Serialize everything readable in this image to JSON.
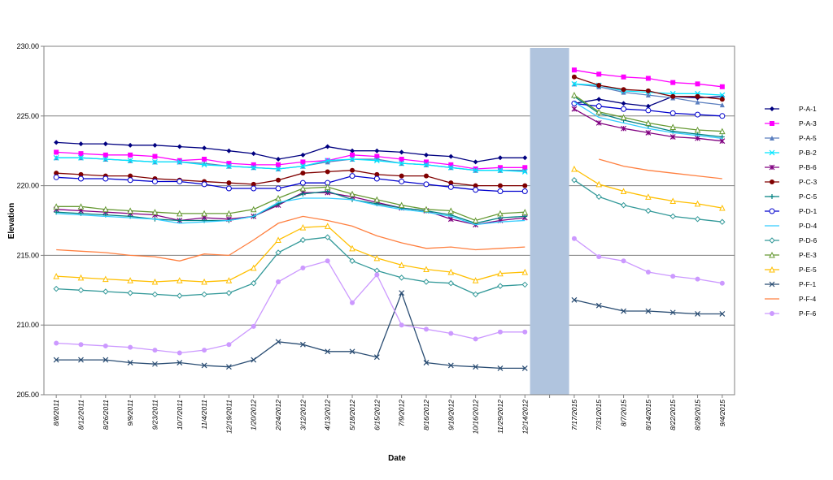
{
  "chart_data": {
    "type": "line",
    "title": "",
    "xlabel": "Date",
    "ylabel": "Elevation",
    "ylim": [
      205,
      230
    ],
    "yticks": [
      "205.00",
      "210.00",
      "215.00",
      "220.00",
      "225.00",
      "230.00"
    ],
    "grid": "horizontal",
    "legend_position": "right",
    "gap_band_color": "#b0c4de",
    "x": [
      "8/8/2011",
      "8/12/2011",
      "8/26/2011",
      "9/9/2011",
      "9/23/2011",
      "10/7/2011",
      "11/4/2011",
      "12/19/2011",
      "1/20/2012",
      "2/24/2012",
      "3/12/2012",
      "4/13/2012",
      "5/18/2012",
      "6/15/2012",
      "7/9/2012",
      "8/16/2012",
      "9/18/2012",
      "10/16/2012",
      "11/29/2012",
      "12/14/2012",
      "",
      "7/17/2015",
      "7/31/2015",
      "8/7/2015",
      "8/14/2015",
      "8/22/2015",
      "8/28/2015",
      "9/4/2015"
    ],
    "gap_index": 20,
    "series": [
      {
        "name": "P-A-1",
        "color": "#000080",
        "marker": "diamond",
        "values": [
          223.1,
          223.0,
          223.0,
          222.9,
          222.9,
          222.8,
          222.7,
          222.5,
          222.3,
          221.9,
          222.2,
          222.8,
          222.5,
          222.5,
          222.4,
          222.2,
          222.1,
          221.7,
          222.0,
          222.0,
          null,
          225.9,
          226.2,
          225.9,
          225.7,
          226.4,
          226.3,
          226.4
        ]
      },
      {
        "name": "P-A-3",
        "color": "#ff00ff",
        "marker": "square",
        "values": [
          222.4,
          222.3,
          222.2,
          222.2,
          222.1,
          221.8,
          221.9,
          221.6,
          221.5,
          221.5,
          221.7,
          221.8,
          222.2,
          222.1,
          221.9,
          221.7,
          221.5,
          221.2,
          221.3,
          221.3,
          null,
          228.3,
          228.0,
          227.8,
          227.7,
          227.4,
          227.3,
          227.1
        ]
      },
      {
        "name": "P-A-5",
        "color": "#5b7fbf",
        "marker": "triangle",
        "values": [
          222.0,
          222.0,
          221.9,
          221.8,
          221.7,
          221.7,
          221.6,
          221.4,
          221.3,
          221.2,
          221.4,
          221.7,
          221.9,
          221.9,
          221.6,
          221.5,
          221.3,
          221.1,
          221.1,
          221.1,
          null,
          227.3,
          227.1,
          226.7,
          226.5,
          226.3,
          226.0,
          225.8
        ]
      },
      {
        "name": "P-B-2",
        "color": "#00e5ff",
        "marker": "x",
        "values": [
          222.0,
          222.0,
          221.9,
          221.8,
          221.7,
          221.7,
          221.5,
          221.4,
          221.3,
          221.2,
          221.4,
          221.8,
          221.9,
          221.8,
          221.6,
          221.5,
          221.3,
          221.1,
          221.1,
          221.0,
          null,
          227.3,
          227.2,
          226.8,
          226.7,
          226.6,
          226.6,
          226.5
        ]
      },
      {
        "name": "P-B-6",
        "color": "#800080",
        "marker": "star",
        "values": [
          218.3,
          218.2,
          218.1,
          218.0,
          217.9,
          217.5,
          217.7,
          217.6,
          217.8,
          218.6,
          219.5,
          219.5,
          219.2,
          218.8,
          218.4,
          218.2,
          217.6,
          217.2,
          217.5,
          217.7,
          null,
          225.5,
          224.5,
          224.1,
          223.8,
          223.5,
          223.4,
          223.2
        ]
      },
      {
        "name": "P-C-3",
        "color": "#800000",
        "marker": "circle",
        "values": [
          220.9,
          220.8,
          220.7,
          220.7,
          220.5,
          220.4,
          220.3,
          220.2,
          220.1,
          220.4,
          220.9,
          221.0,
          221.1,
          220.8,
          220.7,
          220.7,
          220.2,
          220.0,
          220.0,
          220.0,
          null,
          227.8,
          227.2,
          226.9,
          226.8,
          226.4,
          226.4,
          226.2
        ]
      },
      {
        "name": "P-C-5",
        "color": "#008080",
        "marker": "plus",
        "values": [
          218.1,
          218.0,
          217.9,
          217.8,
          217.6,
          217.5,
          217.5,
          217.5,
          217.8,
          218.7,
          219.4,
          219.6,
          219.0,
          218.7,
          218.4,
          218.2,
          217.9,
          217.3,
          217.7,
          217.8,
          null,
          226.4,
          225.2,
          224.7,
          224.3,
          223.9,
          223.7,
          223.5
        ]
      },
      {
        "name": "P-D-1",
        "color": "#0000cd",
        "marker": "circle-open",
        "values": [
          220.6,
          220.5,
          220.5,
          220.4,
          220.3,
          220.3,
          220.1,
          219.8,
          219.8,
          219.8,
          220.2,
          220.2,
          220.7,
          220.5,
          220.3,
          220.1,
          219.9,
          219.7,
          219.6,
          219.6,
          null,
          225.9,
          225.7,
          225.5,
          225.4,
          225.2,
          225.1,
          225.0
        ]
      },
      {
        "name": "P-D-4",
        "color": "#33ccff",
        "marker": "none",
        "values": [
          218.0,
          217.9,
          217.8,
          217.7,
          217.6,
          217.3,
          217.4,
          217.5,
          217.8,
          218.8,
          219.1,
          219.1,
          219.0,
          218.6,
          218.3,
          218.1,
          217.8,
          217.2,
          217.4,
          217.5,
          null,
          226.0,
          224.9,
          224.5,
          224.1,
          223.8,
          223.6,
          223.4
        ]
      },
      {
        "name": "P-D-6",
        "color": "#339999",
        "marker": "diamond-open",
        "values": [
          212.6,
          212.5,
          212.4,
          212.3,
          212.2,
          212.1,
          212.2,
          212.3,
          213.0,
          215.2,
          216.1,
          216.3,
          214.6,
          213.9,
          213.4,
          213.1,
          213.0,
          212.2,
          212.8,
          212.9,
          null,
          220.4,
          219.2,
          218.6,
          218.2,
          217.8,
          217.6,
          217.4
        ]
      },
      {
        "name": "P-E-3",
        "color": "#669933",
        "marker": "triangle-open",
        "values": [
          218.5,
          218.5,
          218.3,
          218.2,
          218.1,
          218.0,
          218.0,
          218.0,
          218.3,
          219.1,
          219.8,
          219.9,
          219.4,
          219.0,
          218.6,
          218.3,
          218.2,
          217.5,
          218.0,
          218.1,
          null,
          226.5,
          225.3,
          224.9,
          224.5,
          224.2,
          224.0,
          223.9
        ]
      },
      {
        "name": "P-E-5",
        "color": "#ffbf00",
        "marker": "triangle-open",
        "values": [
          213.5,
          213.4,
          213.3,
          213.2,
          213.1,
          213.2,
          213.1,
          213.2,
          214.1,
          216.1,
          217.0,
          217.1,
          215.5,
          214.8,
          214.3,
          214.0,
          213.8,
          213.2,
          213.7,
          213.8,
          null,
          221.2,
          220.1,
          219.6,
          219.2,
          218.9,
          218.7,
          218.4
        ]
      },
      {
        "name": "P-F-1",
        "color": "#2a4d73",
        "marker": "x",
        "values": [
          207.5,
          207.5,
          207.5,
          207.3,
          207.2,
          207.3,
          207.1,
          207.0,
          207.5,
          208.8,
          208.6,
          208.1,
          208.1,
          207.7,
          212.3,
          207.3,
          207.1,
          207.0,
          206.9,
          206.9,
          null,
          211.8,
          211.4,
          211.0,
          211.0,
          210.9,
          210.8,
          210.8
        ]
      },
      {
        "name": "P-F-4",
        "color": "#ff8040",
        "marker": "none",
        "values": [
          215.4,
          215.3,
          215.2,
          215.0,
          214.9,
          214.6,
          215.1,
          215.0,
          216.1,
          217.3,
          217.8,
          217.5,
          217.1,
          216.4,
          215.9,
          215.5,
          215.6,
          215.4,
          215.5,
          215.6,
          null,
          null,
          221.9,
          221.4,
          221.1,
          220.9,
          220.7,
          220.5
        ]
      },
      {
        "name": "P-F-6",
        "color": "#cc99ff",
        "marker": "circle",
        "values": [
          208.7,
          208.6,
          208.5,
          208.4,
          208.2,
          208.0,
          208.2,
          208.6,
          209.9,
          213.1,
          214.1,
          214.6,
          211.6,
          213.6,
          210.0,
          209.7,
          209.4,
          209.0,
          209.5,
          209.5,
          null,
          216.2,
          214.9,
          214.6,
          213.8,
          213.5,
          213.3,
          213.0
        ]
      }
    ]
  }
}
